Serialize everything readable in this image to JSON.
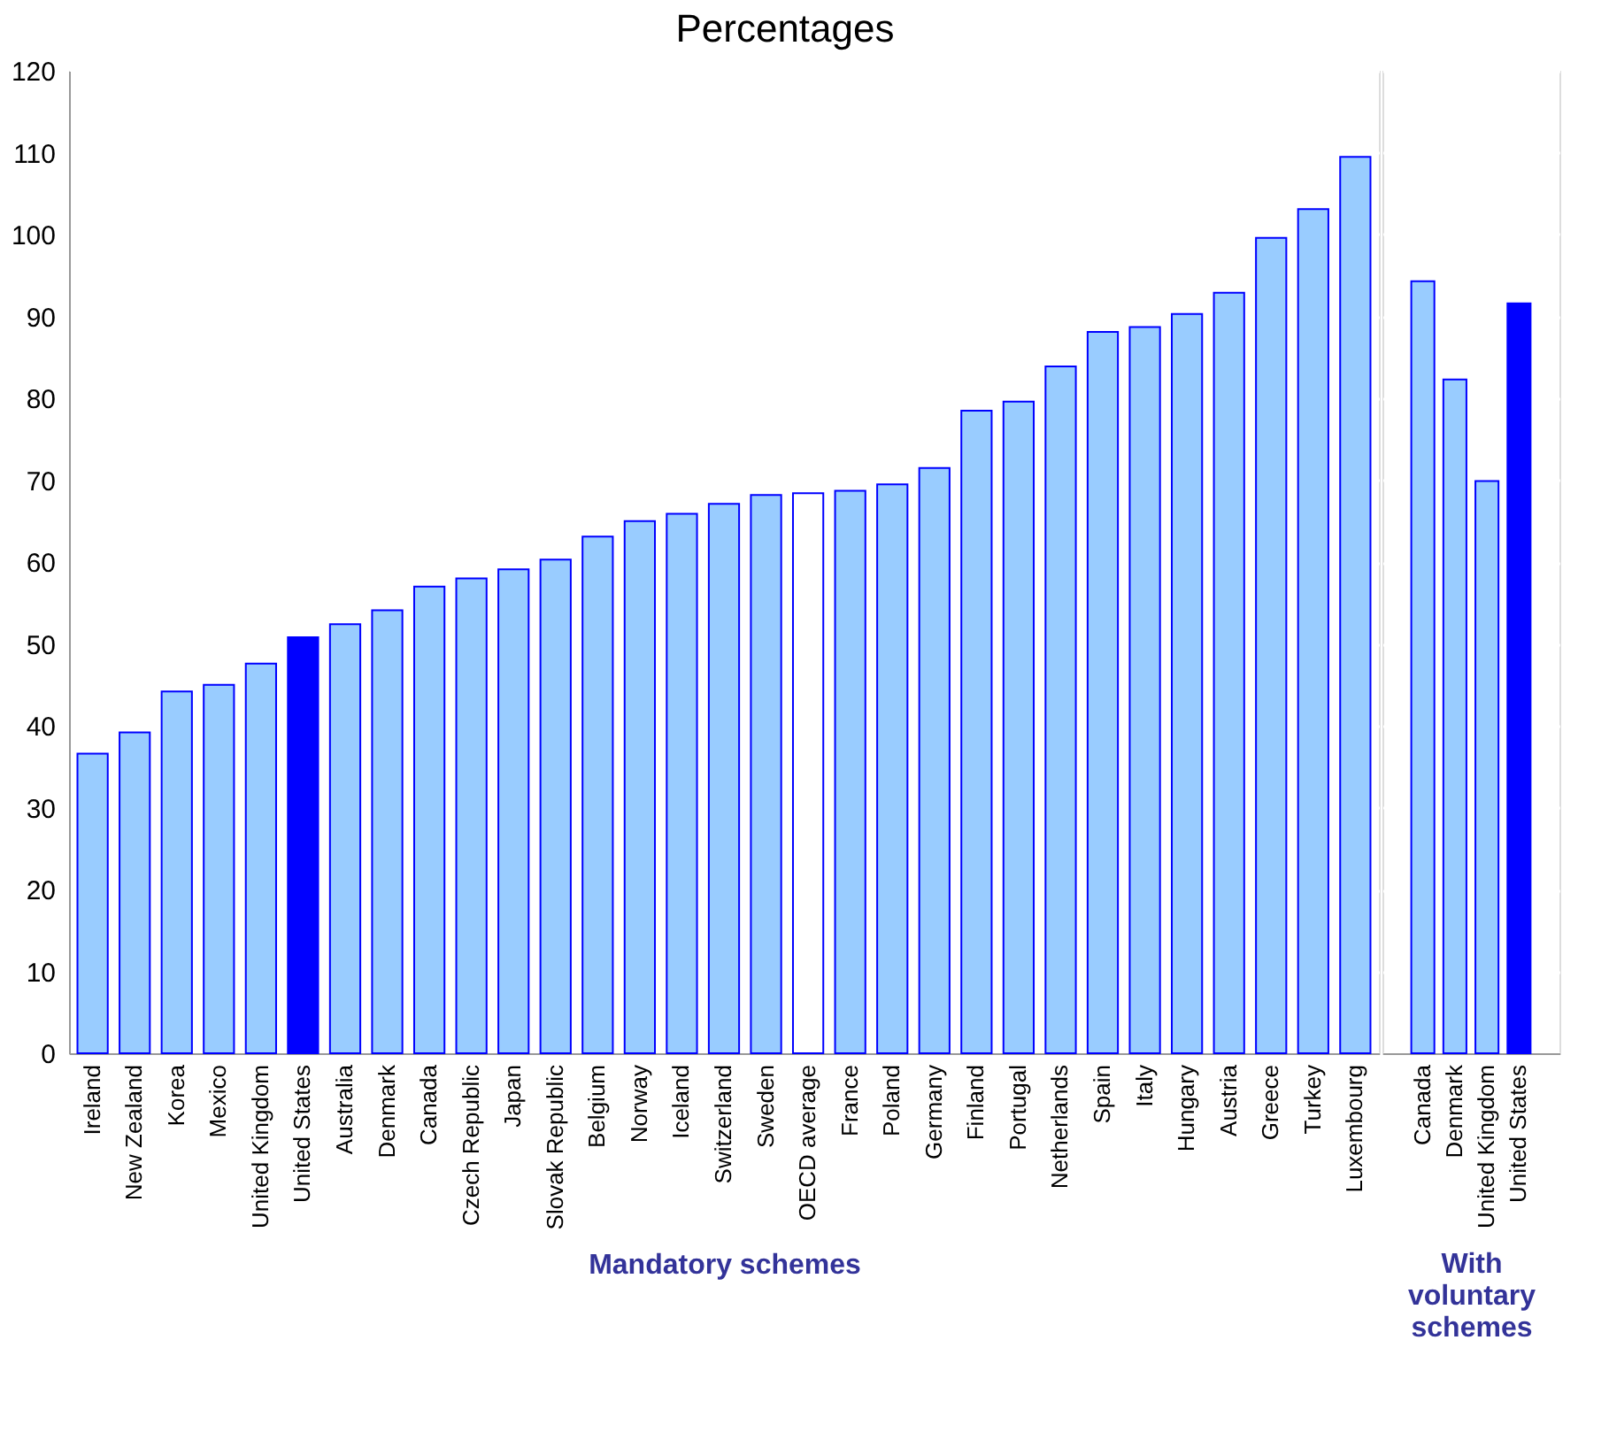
{
  "chart_data": [
    {
      "type": "bar",
      "title": "Percentages",
      "xlabel": "Mandatory schemes",
      "categories": [
        "Ireland",
        "New Zealand",
        "Korea",
        "Mexico",
        "United Kingdom",
        "United States",
        "Australia",
        "Denmark",
        "Canada",
        "Czech Republic",
        "Japan",
        "Slovak Republic",
        "Belgium",
        "Norway",
        "Iceland",
        "Switzerland",
        "Sweden",
        "OECD average",
        "France",
        "Poland",
        "Germany",
        "Finland",
        "Portugal",
        "Netherlands",
        "Spain",
        "Italy",
        "Hungary",
        "Austria",
        "Greece",
        "Turkey",
        "Luxembourg"
      ],
      "values": [
        36.6,
        39.2,
        44.2,
        45.0,
        47.6,
        50.8,
        52.4,
        54.1,
        57.0,
        58.0,
        59.1,
        60.3,
        63.1,
        65.0,
        65.9,
        67.1,
        68.2,
        68.4,
        68.7,
        69.5,
        71.5,
        78.5,
        79.6,
        83.9,
        88.1,
        88.7,
        90.3,
        92.9,
        99.6,
        103.1,
        109.5
      ],
      "colors": [
        "#99ccff",
        "#99ccff",
        "#99ccff",
        "#99ccff",
        "#99ccff",
        "#0000ff",
        "#99ccff",
        "#99ccff",
        "#99ccff",
        "#99ccff",
        "#99ccff",
        "#99ccff",
        "#99ccff",
        "#99ccff",
        "#99ccff",
        "#99ccff",
        "#99ccff",
        "#ffffff",
        "#99ccff",
        "#99ccff",
        "#99ccff",
        "#99ccff",
        "#99ccff",
        "#99ccff",
        "#99ccff",
        "#99ccff",
        "#99ccff",
        "#99ccff",
        "#99ccff",
        "#99ccff",
        "#99ccff"
      ],
      "ylim": [
        0,
        120
      ],
      "yticks": [
        0,
        10,
        20,
        30,
        40,
        50,
        60,
        70,
        80,
        90,
        100,
        110,
        120
      ],
      "grid": "y"
    },
    {
      "type": "bar",
      "xlabel": "With voluntary schemes",
      "categories": [
        "Canada",
        "Denmark",
        "United Kingdom",
        "United States"
      ],
      "values": [
        94.3,
        82.3,
        69.9,
        91.6
      ],
      "colors": [
        "#99ccff",
        "#99ccff",
        "#99ccff",
        "#0000ff"
      ],
      "ylim": [
        0,
        120
      ],
      "yticks": [
        0,
        10,
        20,
        30,
        40,
        50,
        60,
        70,
        80,
        90,
        100,
        110,
        120
      ],
      "grid": "y",
      "tick_labels": "x"
    }
  ]
}
